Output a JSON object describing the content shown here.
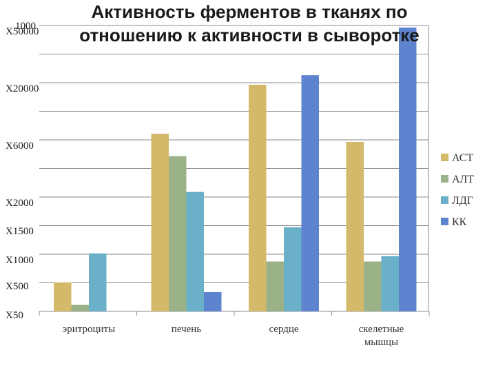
{
  "chart_data": {
    "type": "bar",
    "title_lines": [
      "Активность ферментов в тканях по",
      "отношению к активности в сыворотке"
    ],
    "axis_top_label": "1000",
    "y_tick_labels": [
      {
        "label": "X50000",
        "value": 50000
      },
      {
        "label": "X20000",
        "value": 20000
      },
      {
        "label": "X6000",
        "value": 6000
      },
      {
        "label": "X2000",
        "value": 2000
      },
      {
        "label": "X1500",
        "value": 1500
      },
      {
        "label": "X1000",
        "value": 1000
      },
      {
        "label": "X500",
        "value": 500
      },
      {
        "label": "X50",
        "value": 50
      }
    ],
    "categories": [
      "эритроциты",
      "печень",
      "сердце",
      "скелетные мышцы"
    ],
    "series": [
      {
        "name": "АСТ",
        "color": "#d4b96a",
        "values": [
          500,
          8000,
          20000,
          6000
        ]
      },
      {
        "name": "АЛТ",
        "color": "#9bb187",
        "values": [
          150,
          5000,
          900,
          900
        ]
      },
      {
        "name": "ЛДГ",
        "color": "#6bb0c9",
        "values": [
          1050,
          2500,
          1500,
          1000
        ]
      },
      {
        "name": "КК",
        "color": "#5f84cf",
        "values": [
          null,
          350,
          25000,
          50000
        ]
      }
    ],
    "legend_position": "right",
    "grid": true
  }
}
